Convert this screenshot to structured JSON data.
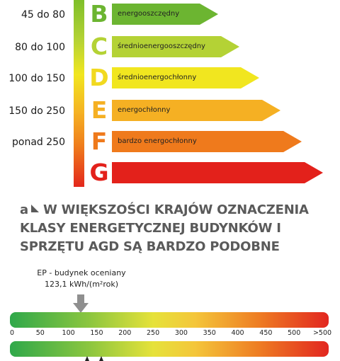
{
  "ranges": [
    "45 do 80",
    "80 do 100",
    "100 do 150",
    "150 do 250",
    "ponad 250"
  ],
  "classes": [
    {
      "letter": "B",
      "label": "energooszczędny",
      "color": "#6cb531"
    },
    {
      "letter": "C",
      "label": "średnioenergooszczędny",
      "color": "#b4d235"
    },
    {
      "letter": "D",
      "label": "średnioenergochłonny",
      "color": "#f1e61f"
    },
    {
      "letter": "E",
      "label": "energochłonny",
      "color": "#f5b023"
    },
    {
      "letter": "F",
      "label": "bardzo energochłonny",
      "color": "#ef7a1c"
    },
    {
      "letter": "G",
      "label": "",
      "color": "#e3211b"
    }
  ],
  "caption": {
    "prefix": "a",
    "text": "W WIĘKSZOŚCI KRAJÓW OZNACZENIA KLASY ENERGETYCZNEJ BUDYNKÓW I SPRZĘTU AGD SĄ BARDZO PODOBNE"
  },
  "ep": {
    "line1": "EP - budynek oceniany",
    "line2": "123,1 kWh/(m²rok)",
    "value": 123.1
  },
  "scale_ticks": [
    "0",
    "50",
    "100",
    "150",
    "200",
    "250",
    "300",
    "350",
    "400",
    "450",
    "500",
    ">500"
  ],
  "colors": {
    "arrow_grey": "#8f8f8f",
    "caption_grey": "#5a5a5a"
  }
}
